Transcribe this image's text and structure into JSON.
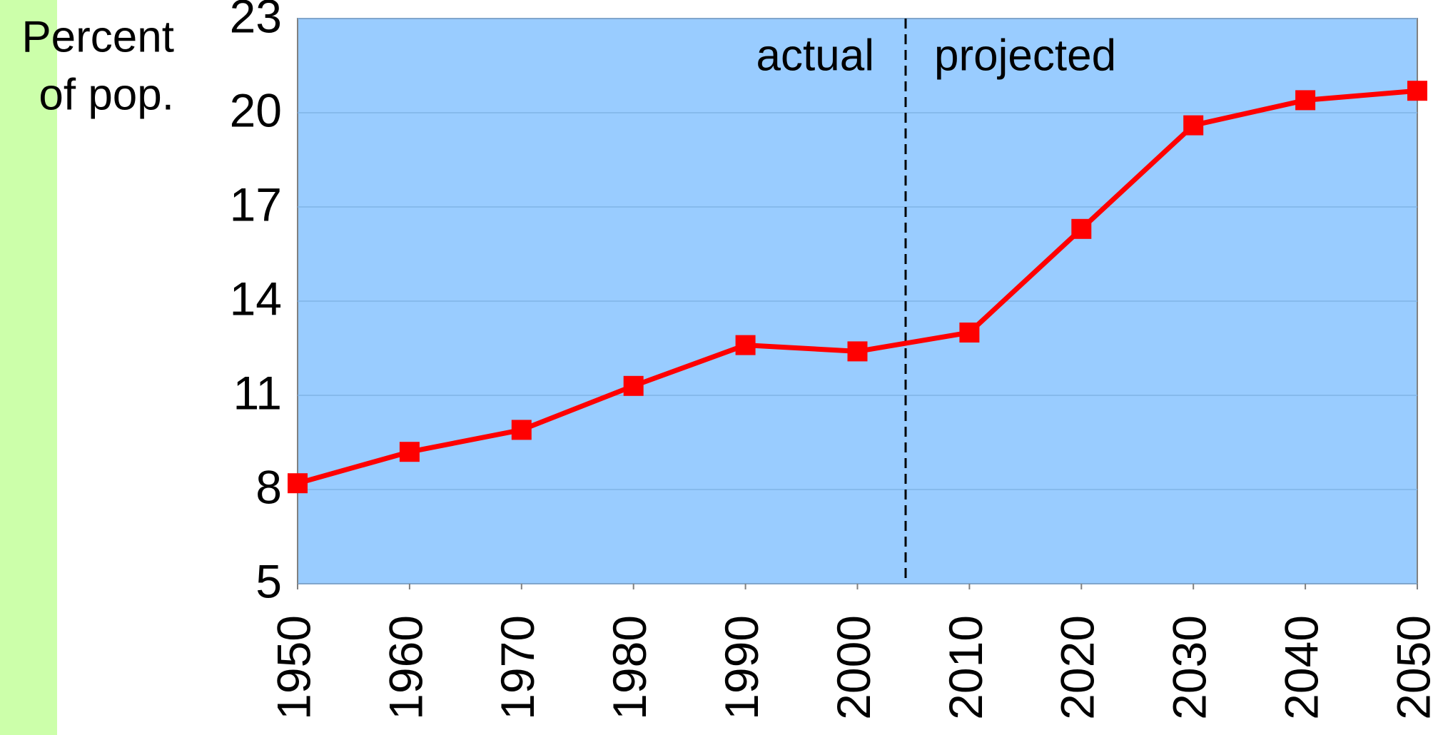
{
  "chart_data": {
    "type": "line",
    "ylabel": [
      "Percent",
      "of pop."
    ],
    "annotations": [
      "actual",
      "projected"
    ],
    "x": [
      1950,
      1960,
      1970,
      1980,
      1990,
      2000,
      2010,
      2020,
      2030,
      2040,
      2050
    ],
    "xlim": [
      1950,
      2050
    ],
    "xticks": [
      1950,
      1960,
      1970,
      1980,
      1990,
      2000,
      2010,
      2020,
      2030,
      2040,
      2050
    ],
    "ylim": [
      5,
      23
    ],
    "yticks": [
      5,
      8,
      11,
      14,
      17,
      20,
      23
    ],
    "grid": true,
    "series": [
      {
        "color": "#ff0000",
        "values": [
          8.2,
          9.2,
          9.9,
          11.3,
          12.6,
          12.4,
          13.0,
          16.3,
          19.6,
          20.4,
          20.7
        ]
      }
    ]
  }
}
